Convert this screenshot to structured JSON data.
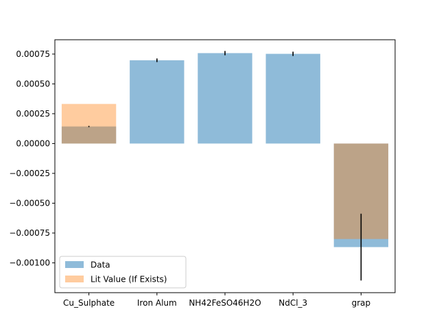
{
  "chart_data": {
    "type": "bar",
    "categories": [
      "Cu_Sulphate",
      "Iron Alum",
      "NH42FeSO46H2O",
      "NdCl_3",
      "grap"
    ],
    "series": [
      {
        "name": "Data",
        "values": [
          0.000143,
          0.000698,
          0.000758,
          0.000752,
          -0.000868
        ],
        "errors": [
          5e-06,
          1.5e-05,
          1.8e-05,
          1.8e-05,
          0.00028
        ],
        "color": "#1f77b4",
        "opacity": 0.5
      },
      {
        "name": " Lit Value (If Exists)",
        "values": [
          0.000332,
          null,
          null,
          null,
          -0.0008
        ],
        "color": "#ff7f0e",
        "opacity": 0.4
      }
    ],
    "ylim": [
      -0.00125,
      0.00087
    ],
    "yticks": [
      0.00075,
      0.0005,
      0.00025,
      0.0,
      -0.00025,
      -0.0005,
      -0.00075,
      -0.001
    ],
    "ytick_labels": [
      "0.00075",
      "0.00050",
      "0.00025",
      "0.00000",
      "−0.00025",
      "−0.00050",
      "−0.00075",
      "−0.00100"
    ],
    "legend": "lower-left",
    "grid": false
  }
}
